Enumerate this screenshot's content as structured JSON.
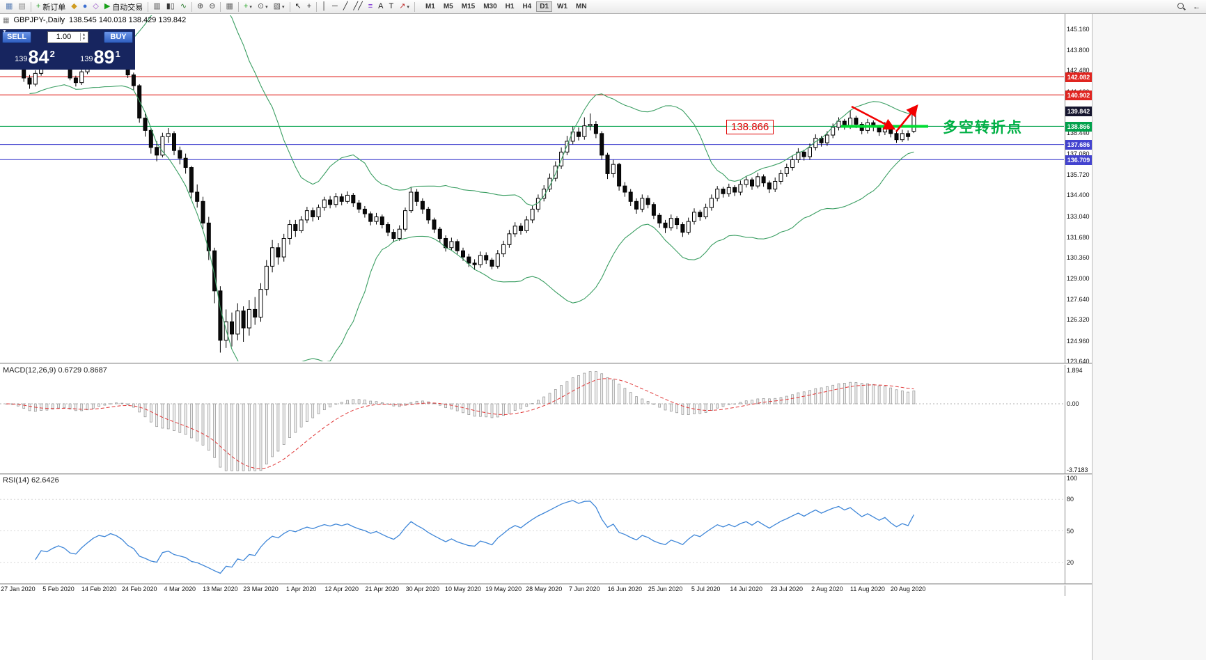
{
  "toolbar": {
    "new_order_label": "新订单",
    "autotrading_label": "自动交易",
    "timeframes": [
      "M1",
      "M5",
      "M15",
      "M30",
      "H1",
      "H4",
      "D1",
      "W1",
      "MN"
    ],
    "active_timeframe": "D1",
    "items": [
      {
        "name": "charts-toolbar-icon",
        "glyph": "▦",
        "color": "#5a7fb5"
      },
      {
        "name": "profiles-icon",
        "glyph": "▤",
        "color": "#888888"
      },
      {
        "name": "sep"
      },
      {
        "name": "new-order-button",
        "glyph": "+",
        "color": "#1d9c1d",
        "label": "新订单"
      },
      {
        "name": "market-watch-icon",
        "glyph": "◆",
        "color": "#d09c20"
      },
      {
        "name": "data-window-icon",
        "glyph": "●",
        "color": "#3b6fd1"
      },
      {
        "name": "navigator-icon",
        "glyph": "◇",
        "color": "#9a59c8"
      },
      {
        "name": "autotrading-button",
        "glyph": "▶",
        "color": "#18a018",
        "label": "自动交易"
      },
      {
        "name": "sep"
      },
      {
        "name": "bar-chart-icon",
        "glyph": "▥",
        "color": "#555555"
      },
      {
        "name": "candlestick-chart-icon",
        "glyph": "▮▯",
        "color": "#333333"
      },
      {
        "name": "line-chart-icon",
        "glyph": "∿",
        "color": "#2e7d32"
      },
      {
        "name": "sep"
      },
      {
        "name": "zoom-in-icon",
        "glyph": "⊕",
        "color": "#444444"
      },
      {
        "name": "zoom-out-icon",
        "glyph": "⊖",
        "color": "#444444"
      },
      {
        "name": "sep"
      },
      {
        "name": "tile-windows-icon",
        "glyph": "▦",
        "color": "#666666"
      },
      {
        "name": "sep"
      },
      {
        "name": "indicators-icon",
        "glyph": "+",
        "color": "#18a018",
        "dropdown": true
      },
      {
        "name": "periods-icon",
        "glyph": "⊙",
        "color": "#555555",
        "dropdown": true
      },
      {
        "name": "templates-icon",
        "glyph": "▧",
        "color": "#555555",
        "dropdown": true
      },
      {
        "name": "sep"
      },
      {
        "name": "cursor-icon",
        "glyph": "↖",
        "color": "#222222"
      },
      {
        "name": "crosshair-icon",
        "glyph": "+",
        "color": "#222222"
      },
      {
        "name": "sep"
      },
      {
        "name": "vertical-line-icon",
        "glyph": "│",
        "color": "#222222"
      },
      {
        "name": "horizontal-line-icon",
        "glyph": "─",
        "color": "#222222"
      },
      {
        "name": "trendline-icon",
        "glyph": "╱",
        "color": "#222222"
      },
      {
        "name": "channel-icon",
        "glyph": "╱╱",
        "color": "#222222"
      },
      {
        "name": "fibonacci-icon",
        "glyph": "≡",
        "color": "#7a2bd2"
      },
      {
        "name": "text-icon",
        "glyph": "A",
        "color": "#222222"
      },
      {
        "name": "text-label-icon",
        "glyph": "T",
        "color": "#222222"
      },
      {
        "name": "arrows-dropdown-icon",
        "glyph": "↗",
        "color": "#c03030",
        "dropdown": true
      },
      {
        "name": "sep"
      }
    ]
  },
  "chart": {
    "title": "GBPJPY-,Daily",
    "ohlc": "138.545 140.018 138.429 139.842",
    "open": "138.545",
    "high": "140.018",
    "low": "138.429",
    "close": "139.842"
  },
  "order_panel": {
    "sell_label": "SELL",
    "buy_label": "BUY",
    "volume": "1.00",
    "sell_prefix": "139",
    "sell_big": "84",
    "sell_sup": "2",
    "buy_prefix": "139",
    "buy_big": "89",
    "buy_sup": "1"
  },
  "indicators": {
    "macd_label": "MACD(12,26,9) 0.6729 0.8687",
    "rsi_label": "RSI(14) 62.6426"
  },
  "annotations": {
    "price_label": "138.866",
    "turning_point": "多空转折点"
  },
  "axis": {
    "price_ticks": [
      "145.160",
      "143.800",
      "142.480",
      "141.120",
      "138.440",
      "137.080",
      "135.720",
      "134.400",
      "133.040",
      "131.680",
      "130.360",
      "129.000",
      "127.640",
      "126.320",
      "124.960",
      "123.640"
    ],
    "price_badges": [
      {
        "label": "142.082",
        "bg": "#e02520"
      },
      {
        "label": "140.902",
        "bg": "#e02520"
      },
      {
        "label": "139.842",
        "bg": "#15152e"
      },
      {
        "label": "138.866",
        "bg": "#00a14b"
      },
      {
        "label": "137.686",
        "bg": "#4343cf"
      },
      {
        "label": "136.709",
        "bg": "#4343cf"
      }
    ],
    "macd_ticks": [
      "1.894",
      "0.00",
      "-3.7183"
    ],
    "rsi_ticks": [
      "100",
      "80",
      "50",
      "20"
    ]
  },
  "chart_data": {
    "type": "candlestick",
    "symbol": "GBPJPY-",
    "period": "Daily",
    "ylim": [
      123.64,
      146.16
    ],
    "levels": [
      {
        "price": 142.082,
        "color": "#e02520"
      },
      {
        "price": 140.902,
        "color": "#e02520"
      },
      {
        "price": 138.866,
        "color": "#00a14b"
      },
      {
        "price": 137.686,
        "color": "#4343cf"
      },
      {
        "price": 136.709,
        "color": "#4343cf"
      }
    ],
    "bollinger": {
      "period": 20,
      "deviation": 2,
      "color": "#3a9e62"
    },
    "macd": {
      "params": "12,26,9",
      "value": 0.6729,
      "signal": 0.8687,
      "ylim": [
        -3.7183,
        1.894
      ]
    },
    "rsi": {
      "period": 14,
      "value": 62.6426
    },
    "drawings": {
      "support_segment_price": 138.866,
      "arrow_color": "#f20000",
      "segment_color": "#00dd33"
    },
    "x_labels": [
      {
        "label": "27 Jan 2020",
        "index": 2
      },
      {
        "label": "5 Feb 2020",
        "index": 9
      },
      {
        "label": "14 Feb 2020",
        "index": 16
      },
      {
        "label": "24 Feb 2020",
        "index": 23
      },
      {
        "label": "4 Mar 2020",
        "index": 30
      },
      {
        "label": "13 Mar 2020",
        "index": 37
      },
      {
        "label": "23 Mar 2020",
        "index": 44
      },
      {
        "label": "1 Apr 2020",
        "index": 51
      },
      {
        "label": "12 Apr 2020",
        "index": 58
      },
      {
        "label": "21 Apr 2020",
        "index": 65
      },
      {
        "label": "30 Apr 2020",
        "index": 72
      },
      {
        "label": "10 May 2020",
        "index": 79
      },
      {
        "label": "19 May 2020",
        "index": 86
      },
      {
        "label": "28 May 2020",
        "index": 93
      },
      {
        "label": "7 Jun 2020",
        "index": 100
      },
      {
        "label": "16 Jun 2020",
        "index": 107
      },
      {
        "label": "25 Jun 2020",
        "index": 114
      },
      {
        "label": "5 Jul 2020",
        "index": 121
      },
      {
        "label": "14 Jul 2020",
        "index": 128
      },
      {
        "label": "23 Jul 2020",
        "index": 135
      },
      {
        "label": "2 Aug 2020",
        "index": 142
      },
      {
        "label": "11 Aug 2020",
        "index": 149
      },
      {
        "label": "20 Aug 2020",
        "index": 156
      }
    ],
    "candles": [
      [
        144.3,
        144.55,
        143.8,
        144.0
      ],
      [
        144.0,
        144.2,
        143.3,
        143.5
      ],
      [
        143.5,
        143.65,
        142.6,
        142.8
      ],
      [
        142.8,
        142.95,
        141.75,
        142.0
      ],
      [
        142.0,
        142.2,
        141.3,
        141.6
      ],
      [
        141.6,
        142.5,
        141.45,
        142.3
      ],
      [
        142.3,
        143.45,
        142.15,
        143.3
      ],
      [
        143.3,
        143.55,
        142.8,
        143.0
      ],
      [
        143.0,
        143.6,
        142.85,
        143.4
      ],
      [
        143.4,
        143.9,
        143.25,
        143.7
      ],
      [
        143.7,
        143.85,
        143.0,
        143.2
      ],
      [
        143.2,
        143.3,
        141.85,
        142.0
      ],
      [
        142.0,
        142.15,
        141.45,
        141.7
      ],
      [
        141.7,
        142.55,
        141.55,
        142.4
      ],
      [
        142.4,
        143.15,
        142.25,
        143.0
      ],
      [
        143.0,
        143.75,
        142.9,
        143.6
      ],
      [
        143.6,
        144.2,
        143.45,
        144.0
      ],
      [
        144.0,
        144.3,
        143.6,
        143.8
      ],
      [
        143.8,
        144.4,
        143.65,
        144.2
      ],
      [
        144.2,
        144.35,
        143.7,
        143.9
      ],
      [
        143.9,
        144.0,
        143.1,
        143.3
      ],
      [
        143.3,
        143.4,
        142.0,
        142.2
      ],
      [
        142.2,
        142.35,
        141.2,
        141.5
      ],
      [
        141.5,
        141.6,
        139.1,
        139.4
      ],
      [
        139.4,
        139.7,
        138.2,
        138.6
      ],
      [
        138.6,
        138.75,
        137.1,
        137.5
      ],
      [
        137.5,
        137.9,
        136.6,
        137.0
      ],
      [
        137.0,
        138.45,
        136.85,
        138.2
      ],
      [
        138.2,
        138.75,
        137.8,
        138.4
      ],
      [
        138.4,
        138.55,
        137.0,
        137.3
      ],
      [
        137.3,
        137.55,
        136.4,
        136.8
      ],
      [
        136.8,
        137.1,
        135.8,
        136.2
      ],
      [
        136.2,
        136.3,
        134.2,
        134.6
      ],
      [
        134.6,
        135.1,
        133.6,
        134.0
      ],
      [
        134.0,
        134.3,
        132.2,
        132.6
      ],
      [
        132.6,
        133.0,
        130.2,
        130.8
      ],
      [
        130.8,
        131.0,
        127.4,
        128.2
      ],
      [
        128.2,
        128.5,
        124.2,
        125.0
      ],
      [
        125.0,
        127.0,
        124.5,
        126.2
      ],
      [
        126.2,
        126.8,
        124.6,
        125.4
      ],
      [
        125.4,
        127.4,
        125.0,
        126.9
      ],
      [
        126.9,
        127.2,
        124.9,
        125.8
      ],
      [
        125.8,
        127.6,
        125.3,
        127.0
      ],
      [
        127.0,
        127.8,
        126.0,
        126.5
      ],
      [
        126.5,
        128.7,
        126.2,
        128.3
      ],
      [
        128.3,
        130.2,
        127.9,
        129.8
      ],
      [
        129.8,
        131.5,
        129.4,
        131.0
      ],
      [
        131.0,
        131.3,
        129.9,
        130.4
      ],
      [
        130.4,
        131.9,
        130.1,
        131.6
      ],
      [
        131.6,
        132.8,
        131.2,
        132.5
      ],
      [
        132.5,
        132.8,
        131.7,
        132.1
      ],
      [
        132.1,
        133.05,
        131.95,
        132.8
      ],
      [
        132.8,
        133.65,
        132.6,
        133.4
      ],
      [
        133.4,
        133.6,
        132.7,
        133.0
      ],
      [
        133.0,
        133.8,
        132.8,
        133.6
      ],
      [
        133.6,
        134.3,
        133.4,
        134.1
      ],
      [
        134.1,
        134.35,
        133.55,
        133.8
      ],
      [
        133.8,
        134.55,
        133.6,
        134.3
      ],
      [
        134.3,
        134.5,
        133.75,
        134.0
      ],
      [
        134.0,
        134.65,
        133.85,
        134.4
      ],
      [
        134.4,
        134.55,
        133.65,
        133.9
      ],
      [
        133.9,
        134.1,
        133.25,
        133.5
      ],
      [
        133.5,
        133.7,
        132.95,
        133.2
      ],
      [
        133.2,
        133.35,
        132.45,
        132.7
      ],
      [
        132.7,
        133.25,
        132.5,
        133.0
      ],
      [
        133.0,
        133.15,
        132.25,
        132.5
      ],
      [
        132.5,
        132.65,
        131.75,
        132.0
      ],
      [
        132.0,
        132.2,
        131.35,
        131.6
      ],
      [
        131.6,
        132.45,
        131.45,
        132.2
      ],
      [
        132.2,
        133.6,
        132.05,
        133.4
      ],
      [
        133.4,
        134.95,
        133.25,
        134.6
      ],
      [
        134.6,
        134.8,
        133.7,
        134.0
      ],
      [
        134.0,
        134.2,
        133.2,
        133.5
      ],
      [
        133.5,
        133.65,
        132.55,
        132.8
      ],
      [
        132.8,
        132.95,
        131.95,
        132.2
      ],
      [
        132.2,
        132.35,
        131.35,
        131.6
      ],
      [
        131.6,
        131.8,
        130.75,
        131.0
      ],
      [
        131.0,
        131.65,
        130.8,
        131.4
      ],
      [
        131.4,
        131.55,
        130.55,
        130.8
      ],
      [
        130.8,
        131.0,
        130.15,
        130.4
      ],
      [
        130.4,
        130.6,
        129.75,
        130.0
      ],
      [
        130.0,
        130.25,
        129.55,
        129.9
      ],
      [
        129.9,
        130.75,
        129.7,
        130.5
      ],
      [
        130.5,
        130.7,
        129.95,
        130.2
      ],
      [
        130.2,
        130.35,
        129.6,
        129.8
      ],
      [
        129.8,
        130.85,
        129.65,
        130.6
      ],
      [
        130.6,
        131.45,
        130.4,
        131.2
      ],
      [
        131.2,
        132.15,
        131.0,
        131.9
      ],
      [
        131.9,
        132.65,
        131.7,
        132.4
      ],
      [
        132.4,
        132.6,
        131.85,
        132.1
      ],
      [
        132.1,
        133.05,
        131.95,
        132.8
      ],
      [
        132.8,
        133.75,
        132.6,
        133.5
      ],
      [
        133.5,
        134.45,
        133.3,
        134.2
      ],
      [
        134.2,
        135.05,
        134.0,
        134.8
      ],
      [
        134.8,
        135.8,
        134.6,
        135.5
      ],
      [
        135.5,
        136.6,
        135.3,
        136.3
      ],
      [
        136.3,
        137.5,
        136.1,
        137.2
      ],
      [
        137.2,
        138.25,
        137.0,
        137.9
      ],
      [
        137.9,
        138.85,
        137.7,
        138.5
      ],
      [
        138.5,
        138.8,
        137.95,
        138.2
      ],
      [
        138.2,
        139.45,
        138.0,
        138.9
      ],
      [
        138.9,
        139.7,
        138.6,
        139.0
      ],
      [
        139.0,
        139.2,
        138.1,
        138.4
      ],
      [
        138.4,
        138.55,
        136.7,
        137.0
      ],
      [
        137.0,
        137.15,
        135.45,
        135.8
      ],
      [
        135.8,
        136.7,
        135.55,
        136.4
      ],
      [
        136.4,
        136.5,
        134.7,
        135.0
      ],
      [
        135.0,
        135.25,
        134.3,
        134.6
      ],
      [
        134.6,
        134.8,
        133.7,
        134.0
      ],
      [
        134.0,
        134.2,
        133.2,
        133.5
      ],
      [
        133.5,
        134.45,
        133.3,
        134.2
      ],
      [
        134.2,
        134.4,
        133.55,
        133.8
      ],
      [
        133.8,
        133.95,
        132.85,
        133.1
      ],
      [
        133.1,
        133.25,
        132.3,
        132.6
      ],
      [
        132.6,
        132.8,
        131.95,
        132.3
      ],
      [
        132.3,
        133.15,
        132.1,
        132.9
      ],
      [
        132.9,
        133.05,
        132.2,
        132.5
      ],
      [
        132.5,
        132.65,
        131.7,
        132.0
      ],
      [
        132.0,
        132.95,
        131.85,
        132.7
      ],
      [
        132.7,
        133.55,
        132.5,
        133.3
      ],
      [
        133.3,
        133.45,
        132.75,
        133.0
      ],
      [
        133.0,
        133.85,
        132.85,
        133.6
      ],
      [
        133.6,
        134.45,
        133.4,
        134.2
      ],
      [
        134.2,
        135.0,
        134.0,
        134.8
      ],
      [
        134.8,
        134.95,
        134.25,
        134.5
      ],
      [
        134.5,
        135.15,
        134.3,
        134.9
      ],
      [
        134.9,
        135.05,
        134.35,
        134.6
      ],
      [
        134.6,
        135.35,
        134.4,
        135.1
      ],
      [
        135.1,
        135.65,
        134.9,
        135.4
      ],
      [
        135.4,
        135.55,
        134.75,
        135.0
      ],
      [
        135.0,
        135.85,
        134.85,
        135.6
      ],
      [
        135.6,
        135.75,
        134.95,
        135.2
      ],
      [
        135.2,
        135.35,
        134.55,
        134.8
      ],
      [
        134.8,
        135.55,
        134.6,
        135.3
      ],
      [
        135.3,
        136.05,
        135.1,
        135.8
      ],
      [
        135.8,
        136.45,
        135.6,
        136.2
      ],
      [
        136.2,
        136.95,
        136.0,
        136.7
      ],
      [
        136.7,
        137.45,
        136.5,
        137.2
      ],
      [
        137.2,
        137.35,
        136.65,
        136.9
      ],
      [
        136.9,
        137.75,
        136.7,
        137.5
      ],
      [
        137.5,
        138.35,
        137.3,
        138.1
      ],
      [
        138.1,
        138.25,
        137.55,
        137.8
      ],
      [
        137.8,
        138.55,
        137.6,
        138.3
      ],
      [
        138.3,
        139.05,
        138.1,
        138.8
      ],
      [
        138.8,
        139.45,
        138.6,
        139.2
      ],
      [
        139.2,
        139.35,
        138.65,
        138.9
      ],
      [
        138.9,
        139.9,
        138.7,
        139.4
      ],
      [
        139.4,
        139.55,
        138.75,
        139.0
      ],
      [
        139.0,
        139.15,
        138.35,
        138.6
      ],
      [
        138.6,
        139.35,
        138.4,
        139.1
      ],
      [
        139.1,
        139.25,
        138.55,
        138.8
      ],
      [
        138.8,
        138.95,
        138.25,
        138.5
      ],
      [
        138.5,
        139.15,
        138.3,
        138.9
      ],
      [
        138.9,
        139.05,
        138.15,
        138.4
      ],
      [
        138.4,
        138.55,
        137.8,
        138.0
      ],
      [
        138.0,
        138.65,
        137.85,
        138.4
      ],
      [
        138.4,
        138.6,
        137.95,
        138.2
      ],
      [
        138.545,
        140.018,
        138.429,
        139.842
      ]
    ]
  }
}
